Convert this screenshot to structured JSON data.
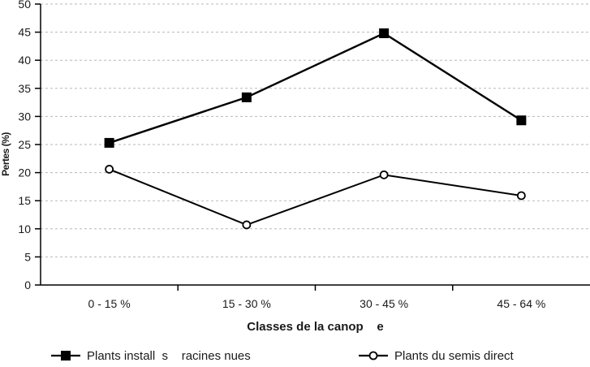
{
  "chart_data": {
    "type": "line",
    "title": "",
    "categories": [
      "0 - 15 %",
      "15 - 30 %",
      "30 - 45 %",
      "45 - 64 %"
    ],
    "series": [
      {
        "name": "Plants install  s    racines nues",
        "marker": "filled-square",
        "values": [
          25.3,
          33.4,
          44.8,
          29.3
        ]
      },
      {
        "name": "Plants du semis direct",
        "marker": "open-circle",
        "values": [
          20.6,
          10.7,
          19.6,
          15.9
        ]
      }
    ],
    "xlabel": "Classes de la canop    e",
    "ylabel": "Pertes (%)",
    "ylim": [
      0,
      50
    ],
    "ytick_step": 5,
    "yticks": [
      0,
      5,
      10,
      15,
      20,
      25,
      30,
      35,
      40,
      45,
      50
    ],
    "grid": "horizontal-dashed",
    "legend_position": "bottom"
  },
  "colors": {
    "line": "#000000",
    "grid": "#b8b8b8",
    "text": "#1a1a1a",
    "marker_fill": "#000000",
    "marker_open_fill": "#ffffff",
    "background": "#ffffff"
  }
}
